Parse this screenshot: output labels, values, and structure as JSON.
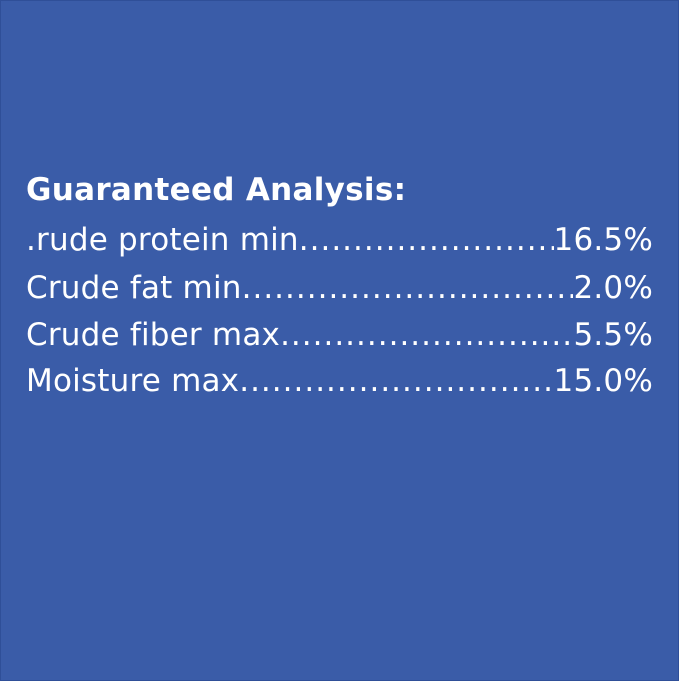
{
  "title": "Guaranteed Analysis:",
  "rows": [
    {
      "label": ".rude protein min",
      "leader": "....................................",
      "value": "16.5%"
    },
    {
      "label": "Crude fat min",
      "leader": "..............................................",
      "value": "2.0%"
    },
    {
      "label": "Crude fiber max",
      "leader": "............................................",
      "value": "5.5%"
    },
    {
      "label": "Moisture max",
      "leader": ".............................................",
      "value": "15.0%"
    }
  ],
  "colors": {
    "background": "#3a5ca8",
    "text": "#ffffff"
  }
}
